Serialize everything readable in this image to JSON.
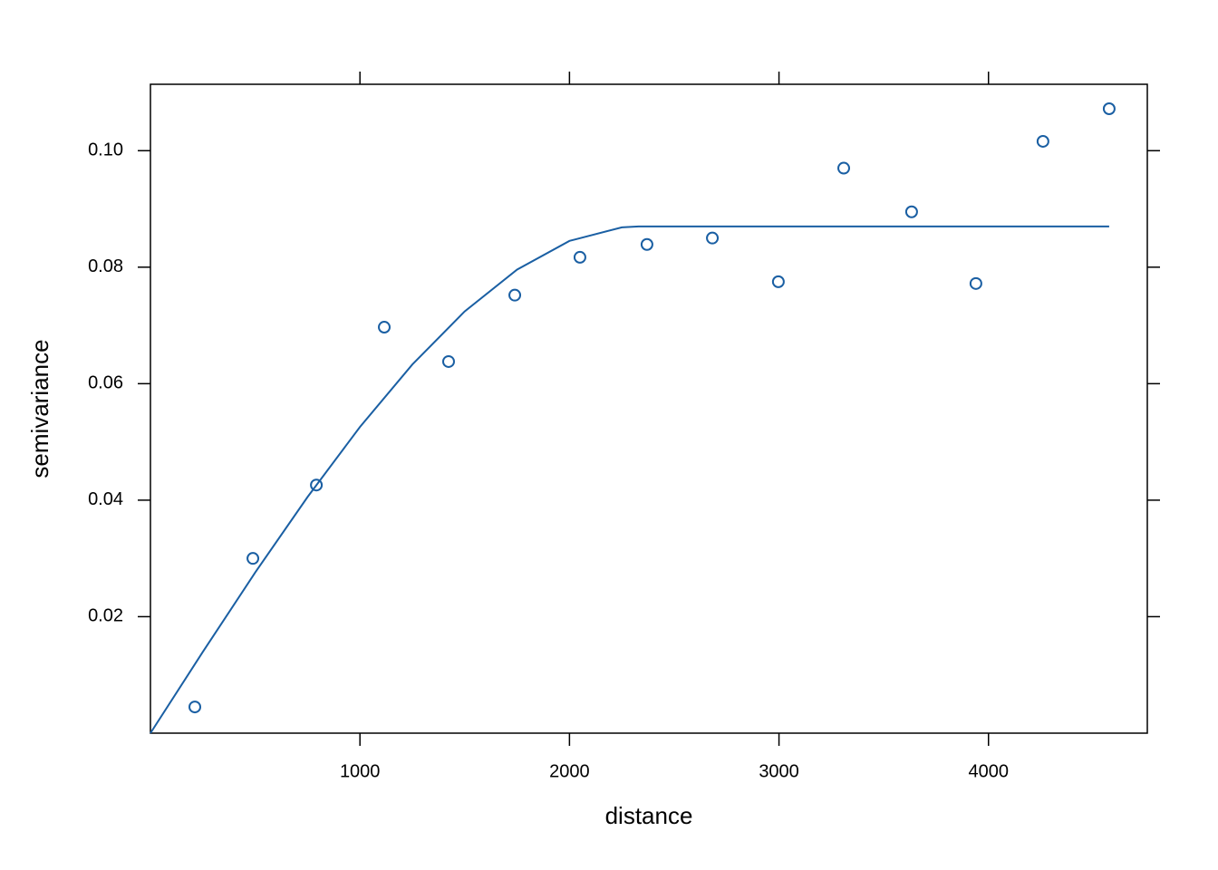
{
  "chart_data": {
    "type": "scatter",
    "xlabel": "distance",
    "ylabel": "semivariance",
    "xlim": [
      0,
      4758
    ],
    "ylim": [
      0,
      0.1114
    ],
    "xticks": [
      1000,
      2000,
      3000,
      4000
    ],
    "yticks": [
      0.02,
      0.04,
      0.06,
      0.08,
      {
        "value": 0.1,
        "label": "0.10"
      }
    ],
    "series": [
      {
        "mode": "points",
        "color": "#1a5fa3",
        "x": [
          212,
          489,
          792,
          1116,
          1423,
          1739,
          2050,
          2370,
          2682,
          2997,
          3309,
          3633,
          3940,
          4260,
          4576
        ],
        "values": [
          0.0045,
          0.03,
          0.0426,
          0.0697,
          0.0638,
          0.0752,
          0.0817,
          0.0839,
          0.085,
          0.0775,
          0.097,
          0.0895,
          0.0772,
          0.1016,
          0.1072
        ]
      },
      {
        "mode": "line",
        "color": "#1a5fa3",
        "x": [
          0,
          250,
          500,
          750,
          1000,
          1250,
          1500,
          1750,
          2000,
          2250,
          2330,
          4576
        ],
        "values": [
          0,
          0.01395,
          0.02758,
          0.04055,
          0.05257,
          0.06329,
          0.07241,
          0.07959,
          0.08451,
          0.08684,
          0.087,
          0.087
        ]
      }
    ]
  }
}
